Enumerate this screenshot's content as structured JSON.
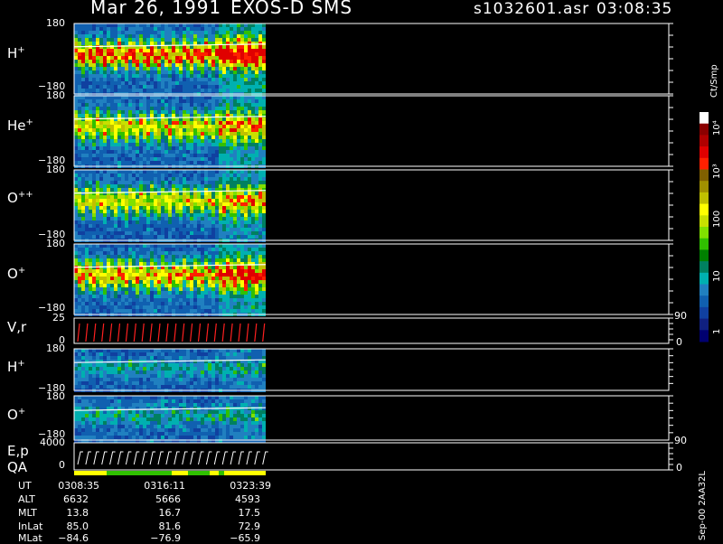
{
  "header": {
    "date": "Mar 26, 1991",
    "instrument": "EXOS-D SMS",
    "filename": "s1032601.asr",
    "time": "03:08:35"
  },
  "panels": [
    {
      "label": "H",
      "charge": "+",
      "ymax": "180",
      "ymin": "−180",
      "kind": "spectro",
      "intensity": 1.0
    },
    {
      "label": "He",
      "charge": "+",
      "ymax": "180",
      "ymin": "−180",
      "kind": "spectro",
      "intensity": 0.75
    },
    {
      "label": "O",
      "charge": "++",
      "ymax": "180",
      "ymin": "−180",
      "kind": "spectro",
      "intensity": 0.7
    },
    {
      "label": "O",
      "charge": "+",
      "ymax": "180",
      "ymin": "−180",
      "kind": "spectro",
      "intensity": 0.85
    },
    {
      "label": "V,r",
      "charge": "",
      "ymax": "25",
      "ymin": "0",
      "right_max": "90",
      "right_min": "0",
      "kind": "line"
    },
    {
      "label": "H",
      "charge": "+",
      "ymax": "180",
      "ymin": "−180",
      "kind": "spectro",
      "intensity": 0.25
    },
    {
      "label": "O",
      "charge": "+",
      "ymax": "180",
      "ymin": "−180",
      "kind": "spectro",
      "intensity": 0.25
    },
    {
      "label": "E,p",
      "label2": "QA",
      "charge": "",
      "ymax": "4000",
      "ymin": "0",
      "right_max": "90",
      "right_min": "0",
      "kind": "ep"
    }
  ],
  "colorbar": {
    "unit": "Ct/Smp",
    "ticks": [
      "10⁴",
      "10³",
      "100",
      "10",
      "1"
    ],
    "colors": [
      "#ffffff",
      "#8b0000",
      "#b00000",
      "#e00000",
      "#ff2000",
      "#806000",
      "#a09000",
      "#c0c000",
      "#ffff00",
      "#c8e000",
      "#80e000",
      "#30c000",
      "#008000",
      "#008060",
      "#00b0b0",
      "#2080c0",
      "#1060b0",
      "#1040a0",
      "#102080",
      "#000070"
    ]
  },
  "footer": {
    "rows": [
      {
        "label": "UT",
        "values": [
          "0308:35",
          "0316:11",
          "0323:39"
        ]
      },
      {
        "label": "ALT",
        "values": [
          "6632",
          "5666",
          "4593"
        ]
      },
      {
        "label": "MLT",
        "values": [
          "13.8",
          "16.7",
          "17.5"
        ]
      },
      {
        "label": "InLat",
        "values": [
          "85.0",
          "81.6",
          "72.9"
        ]
      },
      {
        "label": "MLat",
        "values": [
          "−84.6",
          "−76.9",
          "−65.9"
        ]
      }
    ],
    "stamp": "Sep-00 2AA32L"
  }
}
